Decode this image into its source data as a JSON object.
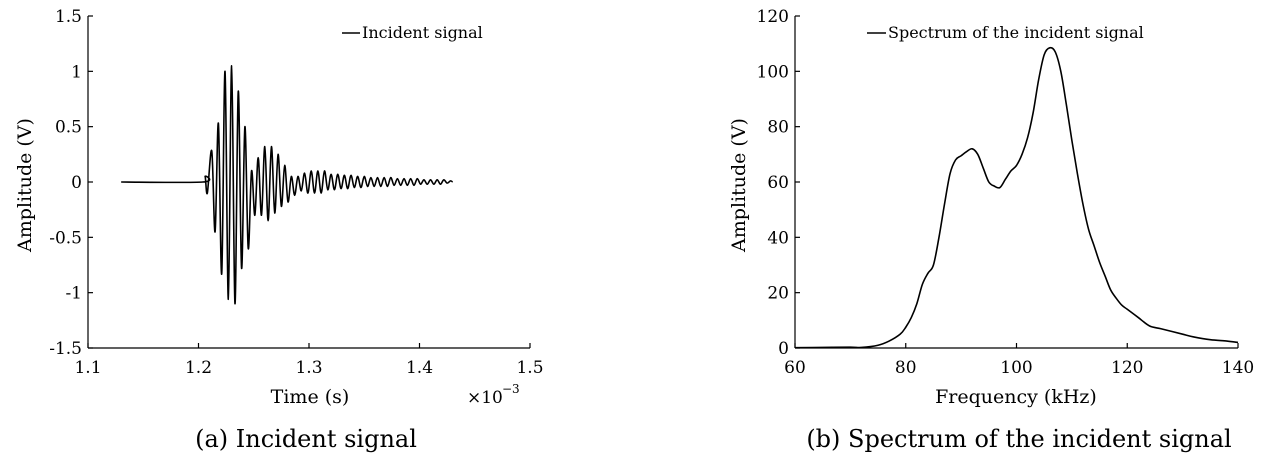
{
  "chart_data": [
    {
      "type": "line",
      "title": "",
      "caption": "(a) Incident signal",
      "xlabel": "Time (s)",
      "ylabel": "Amplitude (V)",
      "xlim": [
        1.1,
        1.5
      ],
      "ylim": [
        -1.5,
        1.5
      ],
      "x_ticks": [
        "1.1",
        "1.2",
        "1.3",
        "1.4",
        "1.5"
      ],
      "y_ticks": [
        "1.5",
        "1",
        "0.5",
        "0",
        "-0.5",
        "-1",
        "-1.5"
      ],
      "x_multiplier": {
        "base": "×10",
        "exponent": "−3"
      },
      "legend_position": "top-right",
      "series": [
        {
          "name": "Incident signal",
          "color": "#000000",
          "x": [
            1.13,
            1.204,
            1.206,
            1.208,
            1.212,
            1.215,
            1.218,
            1.221,
            1.224,
            1.227,
            1.23,
            1.233,
            1.236,
            1.239,
            1.242,
            1.245,
            1.248,
            1.251,
            1.254,
            1.257,
            1.26,
            1.263,
            1.266,
            1.269,
            1.272,
            1.275,
            1.278,
            1.281,
            1.284,
            1.287,
            1.29,
            1.293,
            1.296,
            1.299,
            1.302,
            1.305,
            1.308,
            1.311,
            1.314,
            1.317,
            1.32,
            1.323,
            1.326,
            1.329,
            1.332,
            1.335,
            1.338,
            1.341,
            1.344,
            1.347,
            1.35,
            1.353,
            1.356,
            1.359,
            1.362,
            1.365,
            1.368,
            1.371,
            1.374,
            1.377,
            1.38,
            1.383,
            1.386,
            1.389,
            1.392,
            1.395,
            1.398,
            1.401,
            1.404,
            1.407,
            1.41,
            1.413,
            1.416,
            1.419,
            1.422,
            1.425,
            1.428,
            1.43
          ],
          "y": [
            0.0,
            0.0,
            0.05,
            -0.1,
            0.28,
            -0.45,
            0.53,
            -0.83,
            1.0,
            -1.06,
            1.05,
            -1.1,
            0.82,
            -0.78,
            0.5,
            -0.6,
            0.1,
            -0.3,
            0.22,
            -0.3,
            0.32,
            -0.35,
            0.32,
            -0.28,
            0.25,
            -0.22,
            0.15,
            -0.18,
            0.05,
            -0.12,
            0.05,
            -0.08,
            0.08,
            -0.1,
            0.1,
            -0.1,
            0.1,
            -0.1,
            0.1,
            -0.07,
            0.07,
            -0.07,
            0.07,
            -0.06,
            0.06,
            -0.06,
            0.06,
            -0.05,
            0.05,
            -0.05,
            0.05,
            -0.04,
            0.04,
            -0.04,
            0.04,
            -0.04,
            0.04,
            -0.04,
            0.04,
            -0.03,
            0.03,
            -0.03,
            0.03,
            -0.03,
            0.03,
            -0.03,
            0.03,
            -0.02,
            0.02,
            -0.02,
            0.02,
            -0.02,
            0.02,
            -0.02,
            0.02,
            -0.01,
            0.01,
            0.0
          ]
        }
      ]
    },
    {
      "type": "line",
      "title": "",
      "caption": "(b) Spectrum of the incident signal",
      "xlabel": "Frequency (kHz)",
      "ylabel": "Amplitude (V)",
      "xlim": [
        60,
        140
      ],
      "ylim": [
        0,
        120
      ],
      "x_ticks": [
        "60",
        "80",
        "100",
        "120",
        "140"
      ],
      "y_ticks": [
        "120",
        "100",
        "80",
        "60",
        "40",
        "20",
        "0"
      ],
      "legend_position": "top-center",
      "series": [
        {
          "name": "Spectrum of the incident signal",
          "color": "#000000",
          "x": [
            60,
            65,
            70,
            72,
            75,
            77,
            79,
            80,
            81,
            82,
            83,
            84,
            85,
            86,
            87,
            88,
            89,
            90,
            91,
            92,
            93,
            94,
            95,
            96,
            97,
            98,
            99,
            100,
            101,
            102,
            103,
            104,
            105,
            106,
            107,
            108,
            109,
            110,
            111,
            112,
            113,
            114,
            115,
            116,
            117,
            118,
            119,
            120,
            122,
            124,
            126,
            128,
            130,
            132,
            135,
            138,
            140
          ],
          "y": [
            0.1,
            0.2,
            0.3,
            0.2,
            1.0,
            2.5,
            5.0,
            7.5,
            11,
            16,
            23,
            27,
            30,
            40,
            52,
            63,
            68,
            69.5,
            71,
            72,
            70,
            65,
            60,
            58.5,
            58,
            61,
            64,
            66,
            70,
            76,
            85,
            97,
            106,
            108.5,
            107,
            100,
            88,
            75,
            63,
            52,
            43,
            37,
            31,
            26,
            21,
            18,
            15.5,
            14,
            11,
            8,
            7,
            6,
            5,
            4,
            3,
            2.5,
            2
          ]
        }
      ]
    }
  ]
}
